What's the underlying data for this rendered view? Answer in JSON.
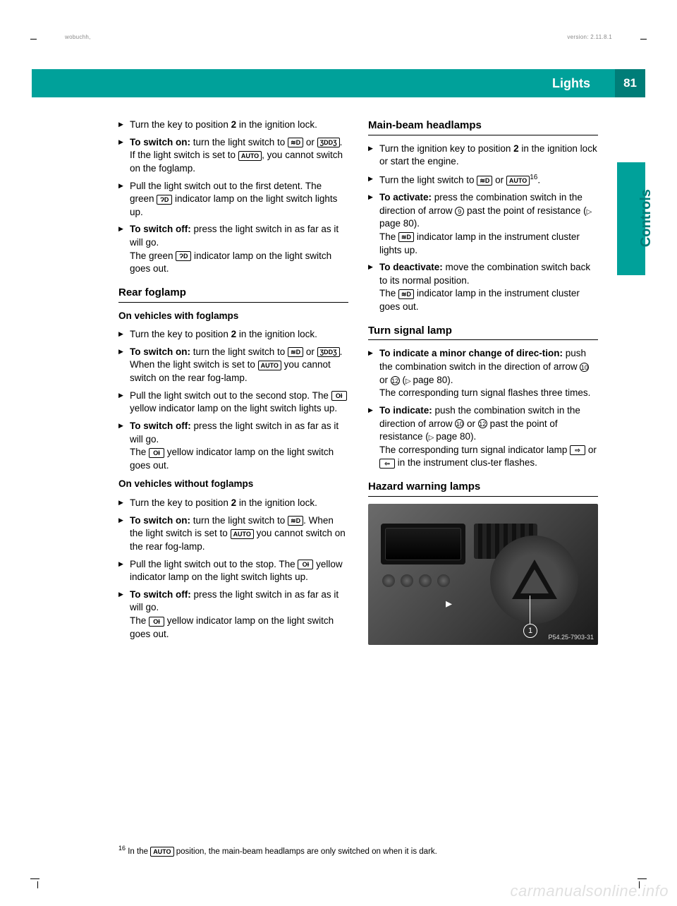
{
  "meta": {
    "left": "wobuchh,",
    "right": "version: 2.11.8.1"
  },
  "header": {
    "section": "Lights",
    "page": "81",
    "side_label": "Controls"
  },
  "colors": {
    "teal": "#00a19a",
    "teal_dark": "#007d78",
    "text": "#000000",
    "bg": "#ffffff",
    "watermark": "rgba(0,0,0,0.12)"
  },
  "icons": {
    "low_beam": "≋D",
    "parking": "ƷDDƷ",
    "auto": "AUTO",
    "fog_green": "ɁD",
    "fog_rear": "OƗ",
    "main_beam": "≋D",
    "turn_left": "⇦",
    "turn_right": "⇨"
  },
  "left": {
    "intro": {
      "i1": "Turn the key to position ",
      "i1b": "2",
      "i1c": " in the ignition lock.",
      "i2a": "To switch on:",
      "i2b": " turn the light switch to ",
      "i2c": " or ",
      "i2d": ". If the light switch is set to ",
      "i2e": ", you cannot switch on the foglamp.",
      "i3a": "Pull the light switch out to the first detent. The green ",
      "i3b": " indicator lamp on the light switch lights up.",
      "i4a": "To switch off:",
      "i4b": " press the light switch in as far as it will go.",
      "i4c": "The green ",
      "i4d": " indicator lamp on the light switch goes out."
    },
    "h_rear": "Rear foglamp",
    "sub_with": "On vehicles with foglamps",
    "with": {
      "w1a": "Turn the key to position ",
      "w1b": "2",
      "w1c": " in the ignition lock.",
      "w2a": "To switch on:",
      "w2b": " turn the light switch to ",
      "w2c": " or ",
      "w2d": ". When the light switch is set to ",
      "w2e": " you cannot switch on the rear fog-lamp.",
      "w3a": "Pull the light switch out to the second stop. The ",
      "w3b": " yellow indicator lamp on the light switch lights up.",
      "w4a": "To switch off:",
      "w4b": " press the light switch in as far as it will go.",
      "w4c": "The ",
      "w4d": " yellow indicator lamp on the light switch goes out."
    },
    "sub_without": "On vehicles without foglamps",
    "without": {
      "x1a": "Turn the key to position ",
      "x1b": "2",
      "x1c": " in the ignition lock.",
      "x2a": "To switch on:",
      "x2b": " turn the light switch to ",
      "x2c": ". When the light switch is set to ",
      "x2d": " you cannot switch on the rear fog-lamp.",
      "x3a": "Pull the light switch out to the stop. The ",
      "x3b": " yellow indicator lamp on the light switch lights up.",
      "x4a": "To switch off:",
      "x4b": " press the light switch in as far as it will go.",
      "x4c": "The ",
      "x4d": " yellow indicator lamp on the light switch goes out."
    }
  },
  "right": {
    "h_main": "Main-beam headlamps",
    "main": {
      "m1a": "Turn the ignition key to position ",
      "m1b": "2",
      "m1c": " in the ignition lock or start the engine.",
      "m2a": "Turn the light switch to ",
      "m2b": " or ",
      "m2sup": "16",
      "m2c": ".",
      "m3a": "To activate:",
      "m3b": " press the combination switch in the direction of arrow ",
      "m3n": "9",
      "m3c": " past the point of resistance (",
      "m3d": "page 80).",
      "m3e": "The ",
      "m3f": " indicator lamp in the instrument cluster lights up.",
      "m4a": "To deactivate:",
      "m4b": " move the combination switch back to its normal position.",
      "m4c": "The ",
      "m4d": " indicator lamp in the instrument cluster goes out."
    },
    "h_turn": "Turn signal lamp",
    "turn": {
      "t1a": "To indicate a minor change of direc-tion:",
      "t1b": " push the combination switch in the direction of arrow ",
      "t1n1": "10",
      "t1c": " or ",
      "t1n2": "12",
      "t1d": " (",
      "t1e": "page 80).",
      "t1f": "The corresponding turn signal flashes three times.",
      "t2a": "To indicate:",
      "t2b": " push the combination switch in the direction of arrow ",
      "t2n1": "10",
      "t2c": " or ",
      "t2n2": "12",
      "t2d": " past the point of resistance (",
      "t2e": "page 80).",
      "t2f": "The corresponding turn signal indicator lamp ",
      "t2g": " or ",
      "t2h": " in the instrument clus-ter flashes."
    },
    "h_hazard": "Hazard warning lamps",
    "fig": {
      "callout": "1",
      "ref": "P54.25-7903-31"
    }
  },
  "footnote": {
    "num": "16",
    "text": " In the ",
    "text2": " position, the main-beam headlamps are only switched on when it is dark."
  },
  "watermark": "carmanualsonline.info"
}
